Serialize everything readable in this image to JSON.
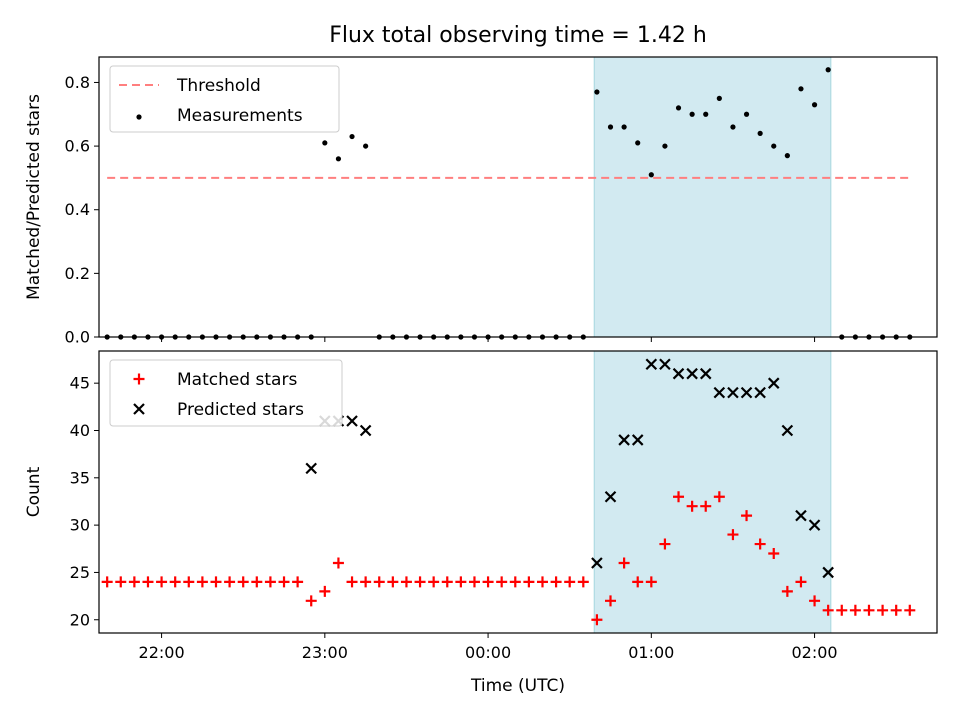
{
  "chart_data": {
    "type": "scatter",
    "title": "Flux total observing time = 1.42 h",
    "xlabel": "Time (UTC)",
    "x_tick_labels": [
      "22:00",
      "23:00",
      "00:00",
      "01:00",
      "02:00"
    ],
    "x_range": [
      "21:37",
      "02:45"
    ],
    "shaded_interval": [
      "00:39",
      "02:06"
    ],
    "shade_color": "#add8e6",
    "panels": [
      {
        "ylabel": "Matched/Predicted stars",
        "ylim": [
          0,
          0.88
        ],
        "yticks": [
          "0.0",
          "0.2",
          "0.4",
          "0.6",
          "0.8"
        ],
        "legend_position": "upper left",
        "series": [
          {
            "name": "Threshold",
            "kind": "dashed-line",
            "color": "#ff7f7f",
            "x": [
              "21:40",
              "02:35"
            ],
            "y": [
              0.5,
              0.5
            ]
          },
          {
            "name": "Measurements",
            "kind": "dot",
            "color": "#000000",
            "x": [
              "21:40",
              "21:45",
              "21:50",
              "21:55",
              "22:00",
              "22:05",
              "22:10",
              "22:15",
              "22:20",
              "22:25",
              "22:30",
              "22:35",
              "22:40",
              "22:45",
              "22:50",
              "22:55",
              "23:00",
              "23:05",
              "23:10",
              "23:15",
              "23:20",
              "23:25",
              "23:30",
              "23:35",
              "23:40",
              "23:45",
              "23:50",
              "23:55",
              "00:00",
              "00:05",
              "00:10",
              "00:15",
              "00:20",
              "00:25",
              "00:30",
              "00:35",
              "00:40",
              "00:45",
              "00:50",
              "00:55",
              "01:00",
              "01:05",
              "01:10",
              "01:15",
              "01:20",
              "01:25",
              "01:30",
              "01:35",
              "01:40",
              "01:45",
              "01:50",
              "01:55",
              "02:00",
              "02:05",
              "02:10",
              "02:15",
              "02:20",
              "02:25",
              "02:30",
              "02:35"
            ],
            "y": [
              0,
              0,
              0,
              0,
              0,
              0,
              0,
              0,
              0,
              0,
              0,
              0,
              0,
              0,
              0,
              0,
              0.61,
              0.56,
              0.63,
              0.6,
              0,
              0,
              0,
              0,
              0,
              0,
              0,
              0,
              0,
              0,
              0,
              0,
              0,
              0,
              0,
              0,
              0.77,
              0.66,
              0.66,
              0.61,
              0.51,
              0.6,
              0.72,
              0.7,
              0.7,
              0.75,
              0.66,
              0.7,
              0.64,
              0.6,
              0.57,
              0.78,
              0.73,
              0.84,
              0,
              0,
              0,
              0,
              0,
              0
            ]
          }
        ]
      },
      {
        "ylabel": "Count",
        "ylim": [
          18.6,
          48.4
        ],
        "yticks": [
          "20",
          "25",
          "30",
          "35",
          "40",
          "45"
        ],
        "legend_position": "upper left",
        "series": [
          {
            "name": "Matched stars",
            "kind": "plus",
            "color": "#ff0000",
            "x": [
              "21:40",
              "21:45",
              "21:50",
              "21:55",
              "22:00",
              "22:05",
              "22:10",
              "22:15",
              "22:20",
              "22:25",
              "22:30",
              "22:35",
              "22:40",
              "22:45",
              "22:50",
              "22:55",
              "23:00",
              "23:05",
              "23:10",
              "23:15",
              "23:20",
              "23:25",
              "23:30",
              "23:35",
              "23:40",
              "23:45",
              "23:50",
              "23:55",
              "00:00",
              "00:05",
              "00:10",
              "00:15",
              "00:20",
              "00:25",
              "00:30",
              "00:35",
              "00:40",
              "00:45",
              "00:50",
              "00:55",
              "01:00",
              "01:05",
              "01:10",
              "01:15",
              "01:20",
              "01:25",
              "01:30",
              "01:35",
              "01:40",
              "01:45",
              "01:50",
              "01:55",
              "02:00",
              "02:05",
              "02:10",
              "02:15",
              "02:20",
              "02:25",
              "02:30",
              "02:35"
            ],
            "y": [
              24,
              24,
              24,
              24,
              24,
              24,
              24,
              24,
              24,
              24,
              24,
              24,
              24,
              24,
              24,
              22,
              23,
              26,
              24,
              24,
              24,
              24,
              24,
              24,
              24,
              24,
              24,
              24,
              24,
              24,
              24,
              24,
              24,
              24,
              24,
              24,
              20,
              22,
              26,
              24,
              24,
              28,
              33,
              32,
              32,
              33,
              29,
              31,
              28,
              27,
              23,
              24,
              22,
              21,
              21,
              21,
              21,
              21,
              21,
              21
            ]
          },
          {
            "name": "Predicted stars",
            "kind": "x",
            "color": "#000000",
            "x": [
              "22:55",
              "23:00",
              "23:05",
              "23:10",
              "23:15",
              "00:40",
              "00:45",
              "00:50",
              "00:55",
              "01:00",
              "01:05",
              "01:10",
              "01:15",
              "01:20",
              "01:25",
              "01:30",
              "01:35",
              "01:40",
              "01:45",
              "01:50",
              "01:55",
              "02:00",
              "02:05"
            ],
            "y": [
              36,
              41,
              41,
              41,
              40,
              26,
              33,
              39,
              39,
              47,
              47,
              46,
              46,
              46,
              44,
              44,
              44,
              44,
              45,
              40,
              31,
              30,
              25
            ]
          }
        ]
      }
    ]
  }
}
